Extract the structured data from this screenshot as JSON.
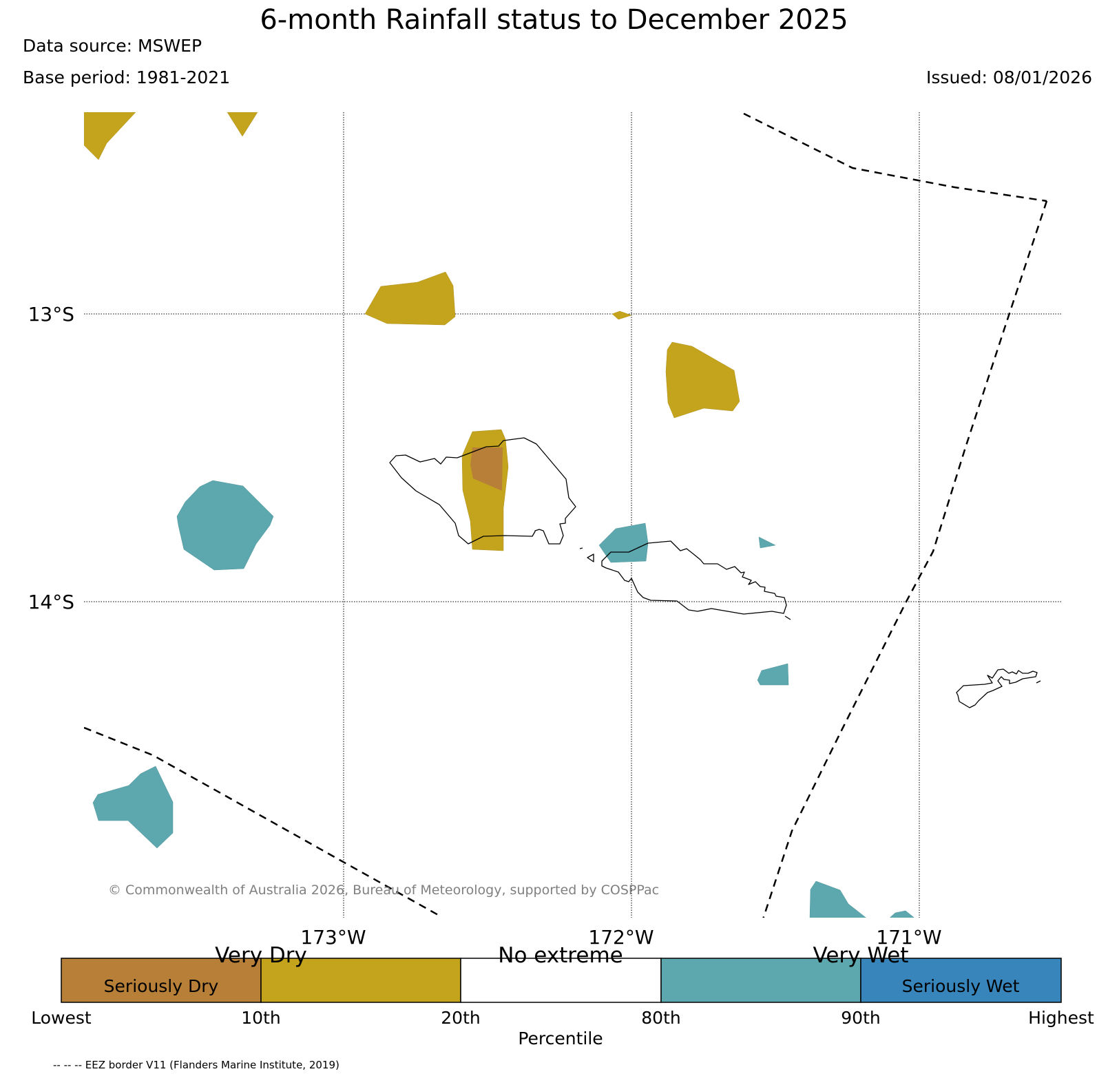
{
  "header": {
    "title": "6-month Rainfall status to December 2025",
    "data_source": "Data source: MSWEP",
    "base_period": "Base period: 1981-2021",
    "issued": "Issued: 08/01/2026"
  },
  "map": {
    "latitude_labels": [
      "13°S",
      "14°S"
    ],
    "longitude_labels": [
      "173°W",
      "172°W",
      "171°W"
    ],
    "copyright": "© Commonwealth of Australia 2026, Bureau of Meteorology, supported by COSPPac"
  },
  "colorbar": {
    "title": "Percentile",
    "group_labels": [
      "Very Dry",
      "No extreme",
      "Very Wet"
    ],
    "segments": [
      {
        "label": "Seriously Dry",
        "color": "#b77f38"
      },
      {
        "label": "",
        "color": "#c4a41c"
      },
      {
        "label": "",
        "color": "#ffffff"
      },
      {
        "label": "",
        "color": "#5ca8ae"
      },
      {
        "label": "Seriously Wet",
        "color": "#3785ba"
      }
    ],
    "tick_labels": [
      "Lowest",
      "10th",
      "20th",
      "80th",
      "90th",
      "Highest"
    ]
  },
  "legend": {
    "eez_note": "-- -- -- EEZ border V11 (Flanders Marine Institute, 2019)"
  },
  "colors": {
    "very_dry": "#c4a41c",
    "seriously_dry": "#b77f38",
    "very_wet": "#5ca8ae",
    "seriously_wet": "#3785ba"
  }
}
